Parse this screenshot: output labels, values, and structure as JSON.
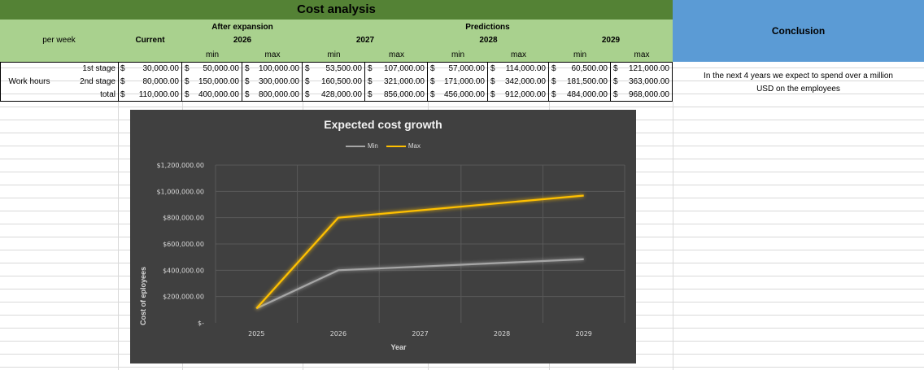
{
  "sheet": {
    "title": "Cost analysis",
    "conclusion_header": "Conclusion",
    "conclusion_text_line1": "In the next 4 years we expect to spend over a million",
    "conclusion_text_line2": "USD on the employees",
    "header": {
      "after_expansion": "After expansion",
      "predictions": "Predictions",
      "per_week": "per week",
      "current": "Current",
      "year_2026": "2026",
      "year_2027": "2027",
      "year_2028": "2028",
      "year_2029": "2029",
      "min": "min",
      "max": "max"
    },
    "row_labels": {
      "work_hours": "Work hours",
      "stage1": "1st stage",
      "stage2": "2nd stage",
      "total": "total"
    },
    "rows": [
      [
        "$",
        "30,000.00",
        "$",
        "50,000.00",
        "$",
        "100,000.00",
        "$",
        "53,500.00",
        "$",
        "107,000.00",
        "$",
        "57,000.00",
        "$",
        "114,000.00",
        "$",
        "60,500.00",
        "$",
        "121,000.00"
      ],
      [
        "$",
        "80,000.00",
        "$",
        "150,000.00",
        "$",
        "300,000.00",
        "$",
        "160,500.00",
        "$",
        "321,000.00",
        "$",
        "171,000.00",
        "$",
        "342,000.00",
        "$",
        "181,500.00",
        "$",
        "363,000.00"
      ],
      [
        "$",
        "110,000.00",
        "$",
        "400,000.00",
        "$",
        "800,000.00",
        "$",
        "428,000.00",
        "$",
        "856,000.00",
        "$",
        "456,000.00",
        "$",
        "912,000.00",
        "$",
        "484,000.00",
        "$",
        "968,000.00"
      ]
    ]
  },
  "chart_data": {
    "type": "line",
    "title": "Expected cost growth",
    "xlabel": "Year",
    "ylabel": "Cost of eployees",
    "categories": [
      "2025",
      "2026",
      "2027",
      "2028",
      "2029"
    ],
    "series": [
      {
        "name": "Min",
        "color": "#a6a6a6",
        "values": [
          110000,
          400000,
          428000,
          456000,
          484000
        ]
      },
      {
        "name": "Max",
        "color": "#ffc000",
        "values": [
          110000,
          800000,
          856000,
          912000,
          968000
        ]
      }
    ],
    "ylim": [
      0,
      1200000
    ],
    "yticks": [
      {
        "value": 0,
        "label": "$-"
      },
      {
        "value": 200000,
        "label": "$200,000.00"
      },
      {
        "value": 400000,
        "label": "$400,000.00"
      },
      {
        "value": 600000,
        "label": "$600,000.00"
      },
      {
        "value": 800000,
        "label": "$800,000.00"
      },
      {
        "value": 1000000,
        "label": "$1,000,000.00"
      },
      {
        "value": 1200000,
        "label": "$1,200,000.00"
      }
    ],
    "grid": true,
    "legend": "top"
  }
}
